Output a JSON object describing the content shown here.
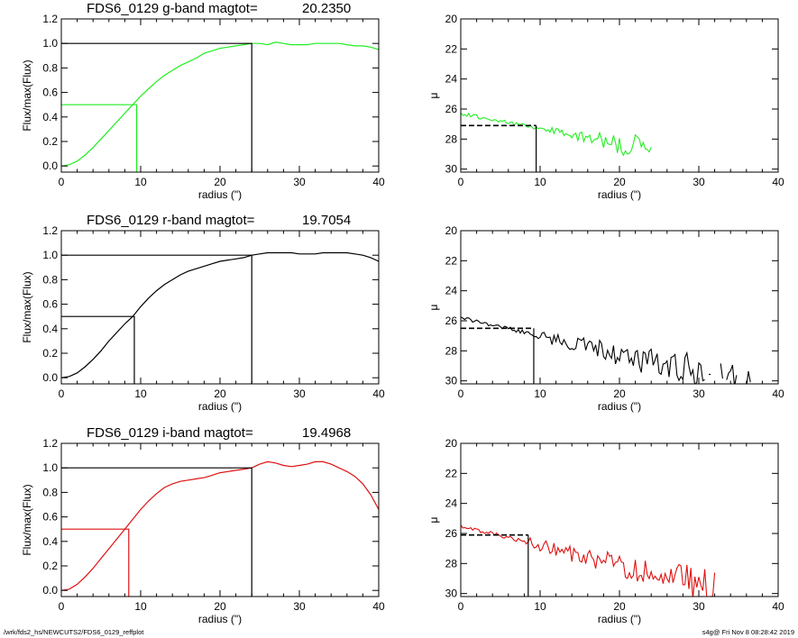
{
  "footer": {
    "path": "/wrk/fds2_hs/NEWCUTS2/FDS6_0129_reffplot",
    "stamp": "s4g@  Fri Nov  8 08:28:42 2019"
  },
  "colors": {
    "g": "#22ee22",
    "r": "#000000",
    "i": "#dd1111",
    "axes": "#000000"
  },
  "chart_data": [
    {
      "id": "g-growth",
      "type": "line",
      "title": "FDS6_0129 g-band  magtot=",
      "title_value": "20.2350",
      "xlabel": "radius (\")",
      "ylabel": "Flux/max(Flux)",
      "xlim": [
        0,
        40
      ],
      "ylim": [
        -0.05,
        1.2
      ],
      "xticks": [
        0,
        10,
        20,
        30,
        40
      ],
      "yticks": [
        0.0,
        0.2,
        0.4,
        0.6,
        0.8,
        1.0,
        1.2
      ],
      "ytick_labels": [
        "0.0",
        "0.2",
        "0.4",
        "0.6",
        "0.8",
        "1.0",
        "1.2"
      ],
      "color": "#22ee22",
      "series": [
        {
          "x": [
            0,
            1,
            2,
            3,
            4,
            5,
            6,
            7,
            8,
            9,
            10,
            11,
            12,
            13,
            14,
            15,
            16,
            17,
            18,
            19,
            20,
            21,
            22,
            23,
            24,
            25,
            26,
            27,
            28,
            29,
            30,
            31,
            32,
            33,
            34,
            35,
            36,
            37,
            38,
            39,
            40
          ],
          "y": [
            0.0,
            0.01,
            0.04,
            0.09,
            0.15,
            0.22,
            0.29,
            0.36,
            0.43,
            0.5,
            0.57,
            0.63,
            0.69,
            0.74,
            0.78,
            0.82,
            0.85,
            0.88,
            0.92,
            0.94,
            0.96,
            0.97,
            0.98,
            0.99,
            1.0,
            1.0,
            0.99,
            1.01,
            1.0,
            0.99,
            0.99,
            0.99,
            1.0,
            1.0,
            1.0,
            1.0,
            0.99,
            0.98,
            0.98,
            0.97,
            0.95
          ]
        }
      ],
      "half_light": {
        "r": 9.5,
        "f": 0.5
      },
      "total": {
        "r": 24.0,
        "f": 1.0
      }
    },
    {
      "id": "g-profile",
      "type": "line",
      "xlabel": "radius (\")",
      "ylabel": "μ",
      "xlim": [
        0,
        40
      ],
      "ylim": [
        30.2,
        20
      ],
      "xticks": [
        0,
        10,
        20,
        30,
        40
      ],
      "yticks": [
        20,
        22,
        24,
        26,
        28,
        30
      ],
      "ytick_labels": [
        "20",
        "22",
        "24",
        "26",
        "28",
        "30"
      ],
      "color": "#22ee22",
      "profile": {
        "start": 26.3,
        "slope": 0.1,
        "noise_start": 10,
        "cut_r": 24,
        "seed": 7
      },
      "mu_eff": {
        "r": 9.5,
        "mu": 27.1
      }
    },
    {
      "id": "r-growth",
      "type": "line",
      "title": "FDS6_0129 r-band  magtot=",
      "title_value": "19.7054",
      "xlabel": "radius (\")",
      "ylabel": "Flux/max(Flux)",
      "xlim": [
        0,
        40
      ],
      "ylim": [
        -0.05,
        1.2
      ],
      "xticks": [
        0,
        10,
        20,
        30,
        40
      ],
      "yticks": [
        0.0,
        0.2,
        0.4,
        0.6,
        0.8,
        1.0,
        1.2
      ],
      "ytick_labels": [
        "0.0",
        "0.2",
        "0.4",
        "0.6",
        "0.8",
        "1.0",
        "1.2"
      ],
      "color": "#000000",
      "series": [
        {
          "x": [
            0,
            1,
            2,
            3,
            4,
            5,
            6,
            7,
            8,
            9,
            10,
            11,
            12,
            13,
            14,
            15,
            16,
            17,
            18,
            19,
            20,
            21,
            22,
            23,
            24,
            25,
            26,
            27,
            28,
            29,
            30,
            31,
            32,
            33,
            34,
            35,
            36,
            37,
            38,
            39,
            40
          ],
          "y": [
            0.0,
            0.01,
            0.04,
            0.09,
            0.15,
            0.22,
            0.3,
            0.37,
            0.44,
            0.5,
            0.58,
            0.65,
            0.71,
            0.76,
            0.8,
            0.84,
            0.87,
            0.89,
            0.91,
            0.93,
            0.95,
            0.96,
            0.97,
            0.98,
            1.0,
            1.01,
            1.02,
            1.02,
            1.02,
            1.02,
            1.01,
            1.01,
            1.01,
            1.02,
            1.02,
            1.02,
            1.02,
            1.01,
            1.0,
            0.98,
            0.95
          ]
        }
      ],
      "half_light": {
        "r": 9.2,
        "f": 0.5
      },
      "total": {
        "r": 24.0,
        "f": 1.0
      }
    },
    {
      "id": "r-profile",
      "type": "line",
      "xlabel": "radius (\")",
      "ylabel": "μ",
      "xlim": [
        0,
        40
      ],
      "ylim": [
        30.2,
        20
      ],
      "xticks": [
        0,
        10,
        20,
        30,
        40
      ],
      "yticks": [
        20,
        22,
        24,
        26,
        28,
        30
      ],
      "ytick_labels": [
        "20",
        "22",
        "24",
        "26",
        "28",
        "30"
      ],
      "color": "#000000",
      "profile": {
        "start": 25.8,
        "slope": 0.12,
        "noise_start": 9,
        "cut_r": 38.5,
        "seed": 13
      },
      "mu_eff": {
        "r": 9.2,
        "mu": 26.5
      }
    },
    {
      "id": "i-growth",
      "type": "line",
      "title": "FDS6_0129 i-band  magtot=",
      "title_value": "19.4968",
      "xlabel": "radius (\")",
      "ylabel": "Flux/max(Flux)",
      "xlim": [
        0,
        40
      ],
      "ylim": [
        -0.05,
        1.2
      ],
      "xticks": [
        0,
        10,
        20,
        30,
        40
      ],
      "yticks": [
        0.0,
        0.2,
        0.4,
        0.6,
        0.8,
        1.0,
        1.2
      ],
      "ytick_labels": [
        "0.0",
        "0.2",
        "0.4",
        "0.6",
        "0.8",
        "1.0",
        "1.2"
      ],
      "color": "#dd1111",
      "series": [
        {
          "x": [
            0,
            1,
            2,
            3,
            4,
            5,
            6,
            7,
            8,
            9,
            10,
            11,
            12,
            13,
            14,
            15,
            16,
            17,
            18,
            19,
            20,
            21,
            22,
            23,
            24,
            25,
            26,
            27,
            28,
            29,
            30,
            31,
            32,
            33,
            34,
            35,
            36,
            37,
            38,
            39,
            40
          ],
          "y": [
            0.0,
            0.01,
            0.05,
            0.11,
            0.18,
            0.26,
            0.34,
            0.42,
            0.5,
            0.58,
            0.66,
            0.73,
            0.79,
            0.84,
            0.87,
            0.89,
            0.9,
            0.91,
            0.92,
            0.94,
            0.96,
            0.97,
            0.98,
            0.99,
            1.0,
            1.03,
            1.05,
            1.04,
            1.02,
            1.01,
            1.02,
            1.03,
            1.05,
            1.05,
            1.03,
            1.0,
            0.97,
            0.93,
            0.87,
            0.78,
            0.66
          ]
        }
      ],
      "half_light": {
        "r": 8.5,
        "f": 0.5
      },
      "total": {
        "r": 24.0,
        "f": 1.0
      }
    },
    {
      "id": "i-profile",
      "type": "line",
      "xlabel": "radius (\")",
      "ylabel": "μ",
      "xlim": [
        0,
        40
      ],
      "ylim": [
        30.2,
        20
      ],
      "xticks": [
        0,
        10,
        20,
        30,
        40
      ],
      "yticks": [
        20,
        22,
        24,
        26,
        28,
        30
      ],
      "ytick_labels": [
        "20",
        "22",
        "24",
        "26",
        "28",
        "30"
      ],
      "color": "#dd1111",
      "profile": {
        "start": 25.5,
        "slope": 0.13,
        "noise_start": 8,
        "cut_r": 32.5,
        "seed": 29
      },
      "mu_eff": {
        "r": 8.5,
        "mu": 26.1
      }
    }
  ]
}
